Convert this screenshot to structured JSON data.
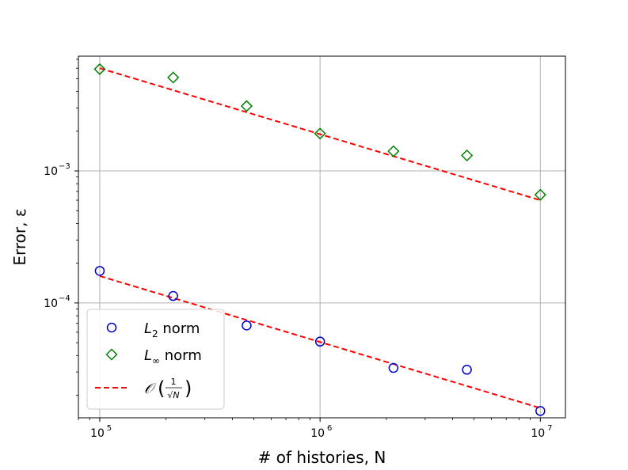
{
  "chart_data": {
    "type": "scatter",
    "x_scale": "log",
    "y_scale": "log",
    "xlabel": "# of histories, N",
    "ylabel": "Error, ε",
    "xlim": [
      80000,
      13000000
    ],
    "ylim": [
      1.35e-05,
      0.0074
    ],
    "grid": true,
    "legend_position": "lower-left",
    "x_ticks": [
      {
        "value": 100000,
        "base": "10",
        "exp": "5"
      },
      {
        "value": 1000000,
        "base": "10",
        "exp": "6"
      },
      {
        "value": 10000000,
        "base": "10",
        "exp": "7"
      }
    ],
    "y_ticks": [
      {
        "value": 0.0001,
        "base": "10",
        "exp": "−4"
      },
      {
        "value": 0.001,
        "base": "10",
        "exp": "−3"
      }
    ],
    "series": [
      {
        "name": "L2 norm",
        "legend_main": "L",
        "legend_sub": "2",
        "legend_rest": " norm",
        "marker": "circle",
        "color": "#0000cc",
        "x": [
          100000,
          215443,
          464159,
          1000000,
          2154435,
          4641589,
          10000000
        ],
        "y": [
          0.000175,
          0.000113,
          6.75e-05,
          5.1e-05,
          3.22e-05,
          3.12e-05,
          1.52e-05
        ]
      },
      {
        "name": "L∞ norm",
        "legend_main": "L",
        "legend_sub": "∞",
        "legend_rest": " norm",
        "marker": "diamond",
        "color": "#007f00",
        "x": [
          100000,
          215443,
          464159,
          1000000,
          2154435,
          4641589,
          10000000
        ],
        "y": [
          0.0059,
          0.0051,
          0.0031,
          0.00192,
          0.00141,
          0.00131,
          0.00066
        ]
      },
      {
        "name": "O(1/√N)",
        "legend_math": "𝒪",
        "legend_num": "1",
        "legend_den": "√N",
        "marker": "dashed-line",
        "color": "#ff0000",
        "lines": [
          {
            "x": [
              100000,
              10000000
            ],
            "y": [
              0.00016,
              1.6e-05
            ]
          },
          {
            "x": [
              100000,
              10000000
            ],
            "y": [
              0.006,
              0.0006
            ]
          }
        ]
      }
    ]
  }
}
